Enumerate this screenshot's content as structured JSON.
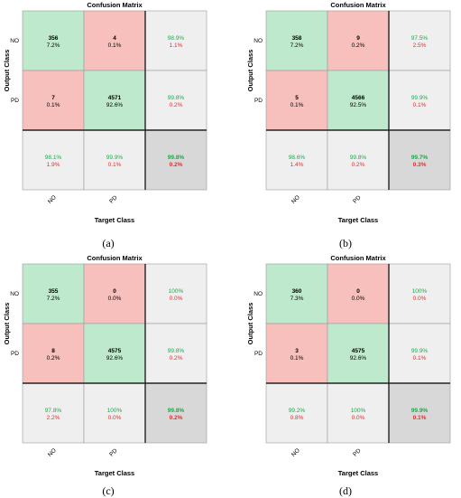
{
  "colors": {
    "correct": "#bfe9cc",
    "incorrect": "#f7c0bc",
    "summary": "#efefef",
    "overall": "#d8d8d8",
    "pct_green": "#1fa84a",
    "pct_red": "#d93434"
  },
  "chart_data": [
    {
      "type": "heatmap",
      "panel_label": "(a)",
      "title": "Confusion Matrix",
      "xlabel": "Target Class",
      "ylabel": "Output Class",
      "classes": [
        "NO",
        "PD"
      ],
      "cells": [
        [
          {
            "count": "356",
            "pct": "7.2%"
          },
          {
            "count": "4",
            "pct": "0.1%"
          }
        ],
        [
          {
            "count": "7",
            "pct": "0.1%"
          },
          {
            "count": "4571",
            "pct": "92.6%"
          }
        ]
      ],
      "row_summary": [
        [
          "98.9%",
          "1.1%"
        ],
        [
          "99.8%",
          "0.2%"
        ]
      ],
      "col_summary": [
        [
          "98.1%",
          "1.9%"
        ],
        [
          "99.9%",
          "0.1%"
        ]
      ],
      "overall": [
        "99.8%",
        "0.2%"
      ]
    },
    {
      "type": "heatmap",
      "panel_label": "(b)",
      "title": "Confusion Matrix",
      "xlabel": "Target Class",
      "ylabel": "Output Class",
      "classes": [
        "NO",
        "PD"
      ],
      "cells": [
        [
          {
            "count": "358",
            "pct": "7.2%"
          },
          {
            "count": "9",
            "pct": "0.2%"
          }
        ],
        [
          {
            "count": "5",
            "pct": "0.1%"
          },
          {
            "count": "4566",
            "pct": "92.5%"
          }
        ]
      ],
      "row_summary": [
        [
          "97.5%",
          "2.5%"
        ],
        [
          "99.9%",
          "0.1%"
        ]
      ],
      "col_summary": [
        [
          "98.6%",
          "1.4%"
        ],
        [
          "99.8%",
          "0.2%"
        ]
      ],
      "overall": [
        "99.7%",
        "0.3%"
      ]
    },
    {
      "type": "heatmap",
      "panel_label": "(c)",
      "title": "Confusion Matrix",
      "xlabel": "Target Class",
      "ylabel": "Output Class",
      "classes": [
        "NO",
        "PD"
      ],
      "cells": [
        [
          {
            "count": "355",
            "pct": "7.2%"
          },
          {
            "count": "0",
            "pct": "0.0%"
          }
        ],
        [
          {
            "count": "8",
            "pct": "0.2%"
          },
          {
            "count": "4575",
            "pct": "92.6%"
          }
        ]
      ],
      "row_summary": [
        [
          "100%",
          "0.0%"
        ],
        [
          "99.8%",
          "0.2%"
        ]
      ],
      "col_summary": [
        [
          "97.8%",
          "2.2%"
        ],
        [
          "100%",
          "0.0%"
        ]
      ],
      "overall": [
        "99.8%",
        "0.2%"
      ]
    },
    {
      "type": "heatmap",
      "panel_label": "(d)",
      "title": "Confusion Matrix",
      "xlabel": "Target Class",
      "ylabel": "Output Class",
      "classes": [
        "NO",
        "PD"
      ],
      "cells": [
        [
          {
            "count": "360",
            "pct": "7.3%"
          },
          {
            "count": "0",
            "pct": "0.0%"
          }
        ],
        [
          {
            "count": "3",
            "pct": "0.1%"
          },
          {
            "count": "4575",
            "pct": "92.6%"
          }
        ]
      ],
      "row_summary": [
        [
          "100%",
          "0.0%"
        ],
        [
          "99.9%",
          "0.1%"
        ]
      ],
      "col_summary": [
        [
          "99.2%",
          "0.8%"
        ],
        [
          "100%",
          "0.0%"
        ]
      ],
      "overall": [
        "99.9%",
        "0.1%"
      ]
    }
  ]
}
